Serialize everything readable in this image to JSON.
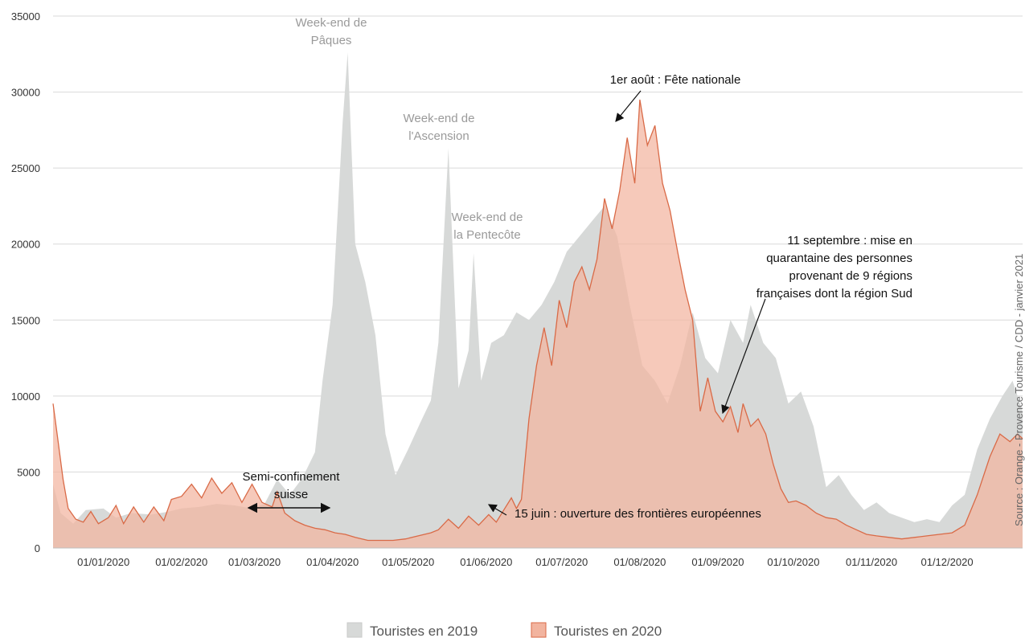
{
  "chart_data": {
    "type": "area",
    "y_ticks": [
      0,
      5000,
      10000,
      15000,
      20000,
      25000,
      30000,
      35000
    ],
    "ylim": [
      0,
      35000
    ],
    "x_ticks": [
      "01/01/2020",
      "01/02/2020",
      "01/03/2020",
      "01/04/2020",
      "01/05/2020",
      "01/06/2020",
      "01/07/2020",
      "01/08/2020",
      "01/09/2020",
      "01/10/2020",
      "01/11/2020",
      "01/12/2020"
    ],
    "x_range": [
      "12/12/2019",
      "31/12/2020"
    ],
    "grid": "horizontal",
    "legend_position": "bottom",
    "series": [
      {
        "name": "Touristes en 2019",
        "color": "#d7d9d8",
        "points": [
          [
            "12/12",
            4200
          ],
          [
            "15/12",
            2300
          ],
          [
            "20/12",
            1600
          ],
          [
            "25/12",
            2500
          ],
          [
            "01/01",
            2600
          ],
          [
            "06/01",
            2000
          ],
          [
            "12/01",
            2300
          ],
          [
            "20/01",
            2200
          ],
          [
            "27/01",
            2400
          ],
          [
            "01/02",
            2600
          ],
          [
            "08/02",
            2700
          ],
          [
            "15/02",
            2900
          ],
          [
            "22/02",
            2800
          ],
          [
            "29/02",
            2600
          ],
          [
            "05/03",
            2900
          ],
          [
            "10/03",
            4500
          ],
          [
            "15/03",
            3500
          ],
          [
            "20/03",
            4600
          ],
          [
            "25/03",
            6300
          ],
          [
            "28/03",
            11000
          ],
          [
            "01/04",
            16000
          ],
          [
            "05/04",
            28000
          ],
          [
            "07/04",
            32600
          ],
          [
            "10/04",
            20000
          ],
          [
            "14/04",
            17500
          ],
          [
            "18/04",
            14000
          ],
          [
            "22/04",
            7500
          ],
          [
            "26/04",
            4800
          ],
          [
            "01/05",
            6500
          ],
          [
            "06/05",
            8300
          ],
          [
            "10/05",
            9700
          ],
          [
            "13/05",
            13500
          ],
          [
            "17/05",
            26300
          ],
          [
            "21/05",
            10500
          ],
          [
            "25/05",
            13000
          ],
          [
            "27/05",
            19400
          ],
          [
            "30/05",
            11000
          ],
          [
            "03/06",
            13500
          ],
          [
            "08/06",
            14000
          ],
          [
            "13/06",
            15500
          ],
          [
            "18/06",
            15000
          ],
          [
            "23/06",
            16000
          ],
          [
            "28/06",
            17500
          ],
          [
            "03/07",
            19500
          ],
          [
            "08/07",
            20500
          ],
          [
            "13/07",
            21500
          ],
          [
            "18/07",
            22500
          ],
          [
            "23/07",
            20500
          ],
          [
            "28/07",
            16000
          ],
          [
            "02/08",
            12000
          ],
          [
            "07/08",
            11000
          ],
          [
            "12/08",
            9500
          ],
          [
            "17/08",
            12000
          ],
          [
            "22/08",
            15500
          ],
          [
            "27/08",
            12500
          ],
          [
            "01/09",
            11500
          ],
          [
            "06/09",
            15000
          ],
          [
            "11/09",
            13500
          ],
          [
            "14/09",
            16000
          ],
          [
            "19/09",
            13500
          ],
          [
            "24/09",
            12500
          ],
          [
            "29/09",
            9500
          ],
          [
            "04/10",
            10300
          ],
          [
            "09/10",
            8000
          ],
          [
            "14/10",
            4000
          ],
          [
            "19/10",
            4800
          ],
          [
            "24/10",
            3500
          ],
          [
            "29/10",
            2500
          ],
          [
            "03/11",
            3000
          ],
          [
            "08/11",
            2300
          ],
          [
            "13/11",
            2000
          ],
          [
            "18/11",
            1700
          ],
          [
            "23/11",
            1900
          ],
          [
            "28/11",
            1700
          ],
          [
            "03/12",
            2800
          ],
          [
            "08/12",
            3500
          ],
          [
            "13/12",
            6500
          ],
          [
            "18/12",
            8500
          ],
          [
            "23/12",
            10000
          ],
          [
            "27/12",
            11000
          ],
          [
            "31/12",
            9000
          ]
        ]
      },
      {
        "name": "Touristes en 2020",
        "color": "#f2b49f",
        "line_color": "#d96a47",
        "points": [
          [
            "12/12",
            9500
          ],
          [
            "14/12",
            7000
          ],
          [
            "16/12",
            4500
          ],
          [
            "18/12",
            2600
          ],
          [
            "21/12",
            1900
          ],
          [
            "24/12",
            1700
          ],
          [
            "27/12",
            2400
          ],
          [
            "30/12",
            1600
          ],
          [
            "03/01",
            2000
          ],
          [
            "06/01",
            2800
          ],
          [
            "09/01",
            1600
          ],
          [
            "13/01",
            2700
          ],
          [
            "17/01",
            1700
          ],
          [
            "21/01",
            2700
          ],
          [
            "25/01",
            1800
          ],
          [
            "28/01",
            3200
          ],
          [
            "01/02",
            3400
          ],
          [
            "05/02",
            4200
          ],
          [
            "09/02",
            3300
          ],
          [
            "13/02",
            4600
          ],
          [
            "17/02",
            3600
          ],
          [
            "21/02",
            4300
          ],
          [
            "25/02",
            3000
          ],
          [
            "29/02",
            4200
          ],
          [
            "04/03",
            3000
          ],
          [
            "08/03",
            2700
          ],
          [
            "10/03",
            3700
          ],
          [
            "13/03",
            2300
          ],
          [
            "17/03",
            1800
          ],
          [
            "21/03",
            1500
          ],
          [
            "25/03",
            1300
          ],
          [
            "29/03",
            1200
          ],
          [
            "02/04",
            1000
          ],
          [
            "06/04",
            900
          ],
          [
            "10/04",
            700
          ],
          [
            "15/04",
            500
          ],
          [
            "20/04",
            500
          ],
          [
            "25/04",
            500
          ],
          [
            "30/04",
            600
          ],
          [
            "05/05",
            800
          ],
          [
            "10/05",
            1000
          ],
          [
            "13/05",
            1200
          ],
          [
            "17/05",
            1900
          ],
          [
            "21/05",
            1300
          ],
          [
            "25/05",
            2100
          ],
          [
            "29/05",
            1500
          ],
          [
            "02/06",
            2200
          ],
          [
            "05/06",
            1700
          ],
          [
            "08/06",
            2500
          ],
          [
            "11/06",
            3300
          ],
          [
            "13/06",
            2600
          ],
          [
            "15/06",
            3200
          ],
          [
            "18/06",
            8500
          ],
          [
            "21/06",
            12000
          ],
          [
            "24/06",
            14500
          ],
          [
            "27/06",
            12000
          ],
          [
            "30/06",
            16300
          ],
          [
            "03/07",
            14500
          ],
          [
            "06/07",
            17500
          ],
          [
            "09/07",
            18500
          ],
          [
            "12/07",
            17000
          ],
          [
            "15/07",
            19000
          ],
          [
            "18/07",
            23000
          ],
          [
            "21/07",
            21000
          ],
          [
            "24/07",
            23500
          ],
          [
            "27/07",
            27000
          ],
          [
            "30/07",
            24000
          ],
          [
            "01/08",
            29500
          ],
          [
            "04/08",
            26500
          ],
          [
            "07/08",
            27800
          ],
          [
            "10/08",
            24000
          ],
          [
            "13/08",
            22200
          ],
          [
            "16/08",
            19500
          ],
          [
            "19/08",
            17000
          ],
          [
            "22/08",
            15000
          ],
          [
            "25/08",
            9000
          ],
          [
            "28/08",
            11200
          ],
          [
            "31/08",
            9000
          ],
          [
            "03/09",
            8300
          ],
          [
            "06/09",
            9300
          ],
          [
            "09/09",
            7600
          ],
          [
            "11/09",
            9500
          ],
          [
            "14/09",
            8000
          ],
          [
            "17/09",
            8500
          ],
          [
            "20/09",
            7500
          ],
          [
            "23/09",
            5500
          ],
          [
            "26/09",
            3900
          ],
          [
            "29/09",
            3000
          ],
          [
            "02/10",
            3100
          ],
          [
            "06/10",
            2800
          ],
          [
            "10/10",
            2300
          ],
          [
            "14/10",
            2000
          ],
          [
            "18/10",
            1900
          ],
          [
            "22/10",
            1500
          ],
          [
            "26/10",
            1200
          ],
          [
            "30/10",
            900
          ],
          [
            "03/11",
            800
          ],
          [
            "08/11",
            700
          ],
          [
            "13/11",
            600
          ],
          [
            "18/11",
            700
          ],
          [
            "23/11",
            800
          ],
          [
            "28/11",
            900
          ],
          [
            "03/12",
            1000
          ],
          [
            "08/12",
            1500
          ],
          [
            "13/12",
            3500
          ],
          [
            "18/12",
            6000
          ],
          [
            "22/12",
            7500
          ],
          [
            "26/12",
            7000
          ],
          [
            "29/12",
            7500
          ],
          [
            "31/12",
            7200
          ]
        ]
      }
    ],
    "annotations": [
      {
        "lines": [
          "Week-end de",
          "Pâques"
        ],
        "style": "grey"
      },
      {
        "lines": [
          "Week-end de",
          "l'Ascension"
        ],
        "style": "grey"
      },
      {
        "lines": [
          "Week-end de",
          "la Pentecôte"
        ],
        "style": "grey"
      },
      {
        "lines": [
          "1er août : Fête nationale"
        ],
        "style": "dark"
      },
      {
        "lines": [
          "11 septembre : mise en",
          "quarantaine des personnes",
          "provenant de 9 régions",
          "françaises dont la région Sud"
        ],
        "style": "dark"
      },
      {
        "lines": [
          "Semi-confinement",
          "suisse"
        ],
        "style": "dark"
      },
      {
        "lines": [
          "15 juin : ouverture des frontières européennes"
        ],
        "style": "dark"
      }
    ],
    "source": "Source : Orange - Provence Tourisme / CDD - janvier 2021"
  }
}
